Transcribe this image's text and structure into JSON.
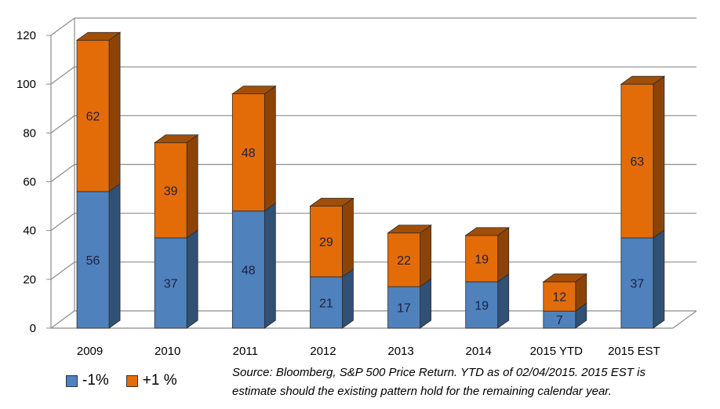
{
  "chart_data": {
    "type": "bar",
    "stacked": true,
    "categories": [
      "2009",
      "2010",
      "2011",
      "2012",
      "2013",
      "2014",
      "2015 YTD",
      "2015 EST"
    ],
    "series": [
      {
        "name": "-1%",
        "color": "#4f81bd",
        "values": [
          56,
          37,
          48,
          21,
          17,
          19,
          7,
          37
        ]
      },
      {
        "name": "+1 %",
        "color": "#e36c09",
        "values": [
          62,
          39,
          48,
          29,
          22,
          19,
          12,
          63
        ]
      }
    ],
    "y_ticks": [
      "0",
      "20",
      "40",
      "60",
      "80",
      "100",
      "120"
    ],
    "ylim": [
      0,
      120
    ],
    "grid": true,
    "legend_position": "bottom-left",
    "title": "",
    "xlabel": "",
    "ylabel": ""
  },
  "note": {
    "line1": "Source: Bloomberg, S&P 500 Price Return. YTD as of 02/04/2015. 2015 EST is",
    "line2": "estimate should the existing pattern hold for the remaining calendar year."
  }
}
